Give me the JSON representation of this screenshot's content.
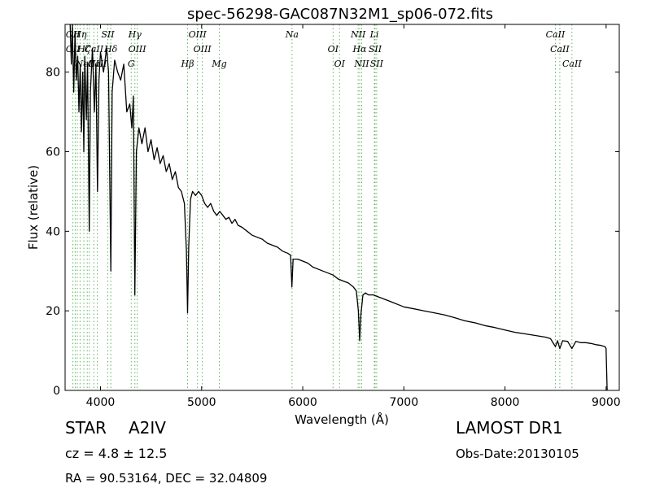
{
  "chart_data": {
    "type": "line",
    "title": "spec-56298-GAC087N32M1_sp06-072.fits",
    "xlabel": "Wavelength (Å)",
    "ylabel": "Flux (relative)",
    "xlim": [
      3650,
      9130
    ],
    "ylim": [
      0,
      92
    ],
    "xticks": [
      4000,
      5000,
      6000,
      7000,
      8000,
      9000
    ],
    "yticks": [
      0,
      20,
      40,
      60,
      80
    ],
    "grid": false,
    "line_color": "#000000",
    "marker_color": "#5fb55f",
    "series": [
      {
        "points": [
          [
            3700,
            92
          ],
          [
            3712,
            82
          ],
          [
            3722,
            92
          ],
          [
            3735,
            75
          ],
          [
            3748,
            90
          ],
          [
            3760,
            78
          ],
          [
            3775,
            84
          ],
          [
            3787,
            70
          ],
          [
            3800,
            82
          ],
          [
            3812,
            65
          ],
          [
            3825,
            80
          ],
          [
            3835,
            60
          ],
          [
            3845,
            84
          ],
          [
            3860,
            68
          ],
          [
            3872,
            82
          ],
          [
            3889,
            40
          ],
          [
            3900,
            75
          ],
          [
            3920,
            86
          ],
          [
            3940,
            70
          ],
          [
            3955,
            82
          ],
          [
            3970,
            50
          ],
          [
            3985,
            78
          ],
          [
            4000,
            85
          ],
          [
            4030,
            80
          ],
          [
            4060,
            86
          ],
          [
            4080,
            80
          ],
          [
            4102,
            30
          ],
          [
            4115,
            75
          ],
          [
            4140,
            83
          ],
          [
            4170,
            80
          ],
          [
            4200,
            78
          ],
          [
            4230,
            82
          ],
          [
            4260,
            70
          ],
          [
            4290,
            72
          ],
          [
            4310,
            66
          ],
          [
            4325,
            74
          ],
          [
            4340,
            24
          ],
          [
            4355,
            60
          ],
          [
            4380,
            66
          ],
          [
            4410,
            62
          ],
          [
            4440,
            66
          ],
          [
            4470,
            60
          ],
          [
            4500,
            63
          ],
          [
            4530,
            58
          ],
          [
            4560,
            61
          ],
          [
            4590,
            57
          ],
          [
            4620,
            59
          ],
          [
            4650,
            55
          ],
          [
            4680,
            57
          ],
          [
            4710,
            53
          ],
          [
            4740,
            55
          ],
          [
            4770,
            51
          ],
          [
            4800,
            50
          ],
          [
            4830,
            47
          ],
          [
            4850,
            35
          ],
          [
            4861,
            19.5
          ],
          [
            4872,
            36
          ],
          [
            4890,
            48
          ],
          [
            4910,
            50
          ],
          [
            4940,
            49
          ],
          [
            4970,
            50
          ],
          [
            5000,
            49
          ],
          [
            5030,
            47
          ],
          [
            5060,
            46
          ],
          [
            5090,
            47
          ],
          [
            5120,
            45
          ],
          [
            5150,
            44
          ],
          [
            5180,
            45
          ],
          [
            5210,
            44
          ],
          [
            5240,
            43
          ],
          [
            5270,
            43.5
          ],
          [
            5300,
            42
          ],
          [
            5330,
            43
          ],
          [
            5360,
            41.5
          ],
          [
            5400,
            41
          ],
          [
            5450,
            40
          ],
          [
            5500,
            39
          ],
          [
            5550,
            38.5
          ],
          [
            5600,
            38
          ],
          [
            5650,
            37
          ],
          [
            5700,
            36.5
          ],
          [
            5750,
            36
          ],
          [
            5800,
            35
          ],
          [
            5850,
            34.5
          ],
          [
            5880,
            34
          ],
          [
            5893,
            26
          ],
          [
            5905,
            33
          ],
          [
            5950,
            33
          ],
          [
            6000,
            32.5
          ],
          [
            6050,
            32
          ],
          [
            6100,
            31
          ],
          [
            6150,
            30.5
          ],
          [
            6200,
            30
          ],
          [
            6250,
            29.5
          ],
          [
            6300,
            29
          ],
          [
            6350,
            28
          ],
          [
            6400,
            27.5
          ],
          [
            6450,
            27
          ],
          [
            6500,
            26
          ],
          [
            6530,
            25
          ],
          [
            6550,
            20
          ],
          [
            6563,
            12.5
          ],
          [
            6575,
            19
          ],
          [
            6595,
            24
          ],
          [
            6620,
            24.5
          ],
          [
            6650,
            24
          ],
          [
            6700,
            24
          ],
          [
            6750,
            23.5
          ],
          [
            6800,
            23
          ],
          [
            6850,
            22.5
          ],
          [
            6900,
            22
          ],
          [
            6950,
            21.5
          ],
          [
            7000,
            21
          ],
          [
            7100,
            20.5
          ],
          [
            7200,
            20
          ],
          [
            7300,
            19.5
          ],
          [
            7400,
            19
          ],
          [
            7500,
            18.3
          ],
          [
            7600,
            17.5
          ],
          [
            7700,
            17
          ],
          [
            7800,
            16.3
          ],
          [
            7900,
            15.8
          ],
          [
            8000,
            15.2
          ],
          [
            8100,
            14.6
          ],
          [
            8200,
            14.2
          ],
          [
            8300,
            13.8
          ],
          [
            8400,
            13.4
          ],
          [
            8450,
            13
          ],
          [
            8498,
            11
          ],
          [
            8520,
            12.5
          ],
          [
            8542,
            10.5
          ],
          [
            8570,
            12.5
          ],
          [
            8620,
            12.3
          ],
          [
            8662,
            10.5
          ],
          [
            8700,
            12.3
          ],
          [
            8750,
            12
          ],
          [
            8800,
            12
          ],
          [
            8850,
            11.8
          ],
          [
            8900,
            11.5
          ],
          [
            8950,
            11.3
          ],
          [
            8990,
            11
          ],
          [
            9000,
            10.5
          ],
          [
            9010,
            0
          ]
        ]
      }
    ],
    "line_markers": [
      {
        "wavelength": 3727,
        "labels": [
          "OII",
          "OII"
        ]
      },
      {
        "wavelength": 3750,
        "labels": []
      },
      {
        "wavelength": 3771,
        "labels": []
      },
      {
        "wavelength": 3798,
        "labels": [
          "Hη"
        ]
      },
      {
        "wavelength": 3835,
        "labels": [
          "Hζ"
        ]
      },
      {
        "wavelength": 3869,
        "labels": [
          "NeIII"
        ]
      },
      {
        "wavelength": 3889,
        "labels": []
      },
      {
        "wavelength": 3934,
        "labels": [
          "CaII"
        ]
      },
      {
        "wavelength": 3969,
        "labels": [
          "CaII"
        ]
      },
      {
        "wavelength": 4072,
        "labels": [
          "SII"
        ]
      },
      {
        "wavelength": 4102,
        "labels": [
          "Hδ"
        ]
      },
      {
        "wavelength": 4304,
        "labels": [
          "G"
        ]
      },
      {
        "wavelength": 4340,
        "labels": [
          "Hγ"
        ]
      },
      {
        "wavelength": 4363,
        "labels": [
          "OIII"
        ]
      },
      {
        "wavelength": 4861,
        "labels": [
          "Hβ"
        ]
      },
      {
        "wavelength": 4959,
        "labels": [
          "OIII"
        ]
      },
      {
        "wavelength": 5007,
        "labels": [
          "OIII"
        ]
      },
      {
        "wavelength": 5175,
        "labels": [
          "Mg"
        ]
      },
      {
        "wavelength": 5894,
        "labels": [
          "Na"
        ]
      },
      {
        "wavelength": 6300,
        "labels": [
          "OI"
        ]
      },
      {
        "wavelength": 6364,
        "labels": [
          "OI"
        ]
      },
      {
        "wavelength": 6548,
        "labels": [
          "NII"
        ]
      },
      {
        "wavelength": 6563,
        "labels": [
          "Hα"
        ]
      },
      {
        "wavelength": 6583,
        "labels": [
          "NII"
        ]
      },
      {
        "wavelength": 6708,
        "labels": [
          "Li"
        ]
      },
      {
        "wavelength": 6716,
        "labels": [
          "SII"
        ]
      },
      {
        "wavelength": 6731,
        "labels": [
          "SII"
        ]
      },
      {
        "wavelength": 8498,
        "labels": [
          "CaII"
        ]
      },
      {
        "wavelength": 8542,
        "labels": [
          "CaII"
        ]
      },
      {
        "wavelength": 8662,
        "labels": [
          "CaII"
        ]
      }
    ]
  },
  "info": {
    "class_label": "STAR",
    "subclass": "A2IV",
    "survey": "LAMOST DR1",
    "cz": "cz = 4.8 ± 12.5",
    "obs_date": "Obs-Date:20130105",
    "coords": "RA = 90.53164, DEC = 32.04809"
  }
}
